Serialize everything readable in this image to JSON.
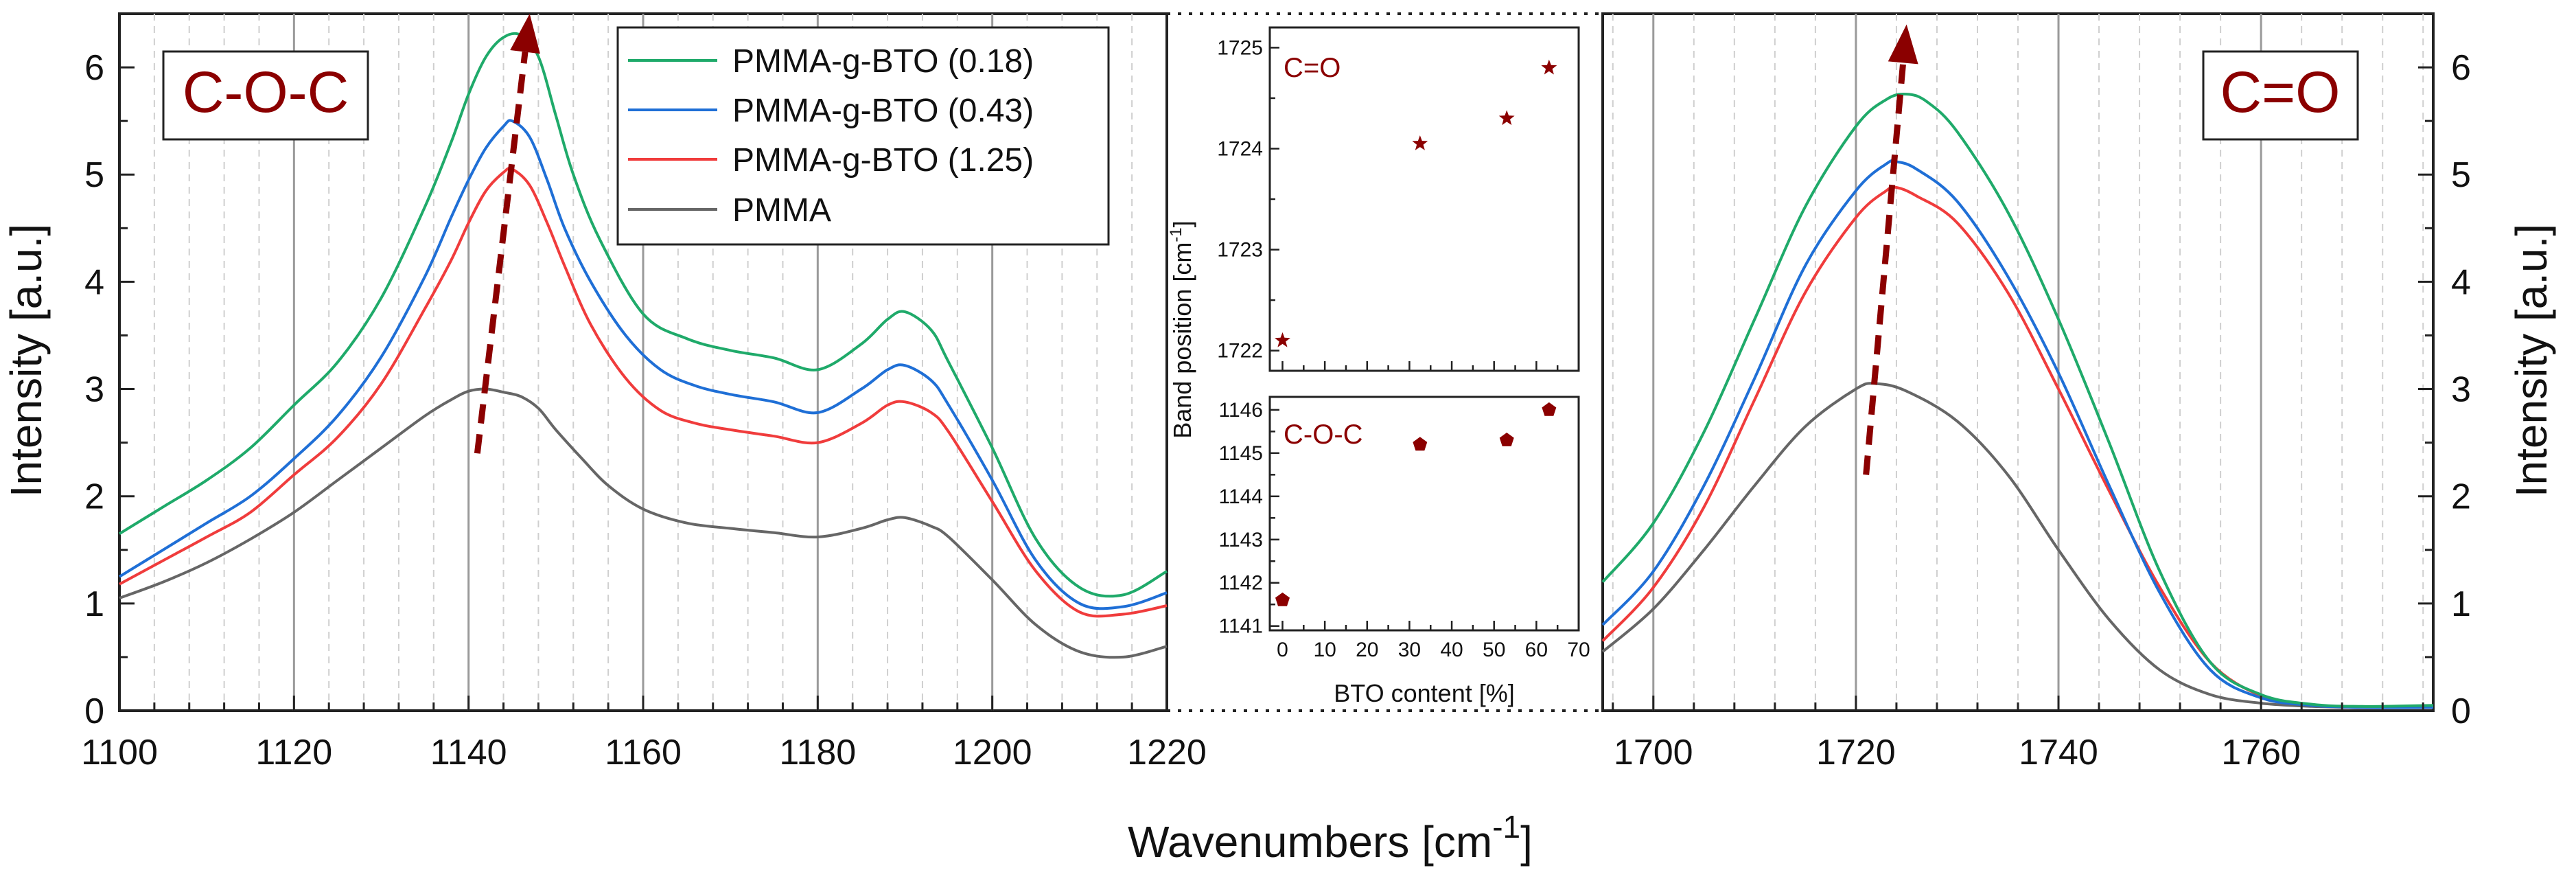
{
  "colors": {
    "pmma_g_bto_018": "#1faa6a",
    "pmma_g_bto_043": "#1f6fd6",
    "pmma_g_bto_125": "#f03c3c",
    "pmma": "#666666",
    "accent": "#8b0000"
  },
  "chart_data": [
    {
      "id": "left",
      "type": "line",
      "xlabel": "Wavenumbers [cm",
      "xlabel_sup": "-1",
      "xlabel_tail": "]",
      "ylabel": "Intensity [a.u.]",
      "xlim": [
        1100,
        1220
      ],
      "ylim": [
        0,
        6.5
      ],
      "xticks": [
        "1100",
        "1120",
        "1140",
        "1160",
        "1180",
        "1200",
        "1220"
      ],
      "yticks": [
        "0",
        "1",
        "2",
        "3",
        "4",
        "5",
        "6"
      ],
      "annotation": "C-O-C",
      "arrow": {
        "from": [
          1141,
          2.4
        ],
        "to": [
          1147,
          6.5
        ]
      },
      "legend": [
        "PMMA-g-BTO (0.18)",
        "PMMA-g-BTO (0.43)",
        "PMMA-g-BTO (1.25)",
        "PMMA"
      ],
      "series": [
        {
          "name": "PMMA-g-BTO (0.18)",
          "color": "#1faa6a",
          "x": [
            1100,
            1105,
            1110,
            1115,
            1120,
            1125,
            1130,
            1135,
            1138,
            1140,
            1142,
            1144,
            1146,
            1148,
            1150,
            1152,
            1155,
            1160,
            1165,
            1170,
            1175,
            1180,
            1185,
            1188,
            1190,
            1193,
            1195,
            1200,
            1205,
            1210,
            1215,
            1220
          ],
          "y": [
            1.65,
            1.9,
            2.15,
            2.45,
            2.85,
            3.25,
            3.85,
            4.7,
            5.3,
            5.75,
            6.1,
            6.28,
            6.3,
            6.1,
            5.55,
            5.0,
            4.4,
            3.7,
            3.47,
            3.36,
            3.29,
            3.18,
            3.42,
            3.65,
            3.72,
            3.55,
            3.25,
            2.45,
            1.6,
            1.15,
            1.08,
            1.3
          ]
        },
        {
          "name": "PMMA-g-BTO (0.43)",
          "color": "#1f6fd6",
          "x": [
            1100,
            1105,
            1110,
            1115,
            1120,
            1125,
            1130,
            1135,
            1138,
            1140,
            1142,
            1144,
            1145,
            1147,
            1149,
            1151,
            1154,
            1158,
            1162,
            1166,
            1170,
            1175,
            1180,
            1185,
            1188,
            1190,
            1193,
            1195,
            1200,
            1205,
            1210,
            1215,
            1220
          ],
          "y": [
            1.25,
            1.5,
            1.75,
            2.0,
            2.35,
            2.75,
            3.3,
            4.05,
            4.6,
            4.95,
            5.25,
            5.45,
            5.5,
            5.35,
            4.95,
            4.5,
            4.0,
            3.5,
            3.18,
            3.03,
            2.95,
            2.88,
            2.78,
            3.0,
            3.18,
            3.22,
            3.08,
            2.85,
            2.15,
            1.4,
            1.0,
            0.97,
            1.1
          ]
        },
        {
          "name": "PMMA-g-BTO (1.25)",
          "color": "#f03c3c",
          "x": [
            1100,
            1105,
            1110,
            1115,
            1120,
            1125,
            1130,
            1135,
            1138,
            1140,
            1142,
            1144,
            1145,
            1147,
            1149,
            1151,
            1154,
            1158,
            1162,
            1166,
            1170,
            1175,
            1180,
            1185,
            1188,
            1190,
            1193,
            1195,
            1200,
            1205,
            1210,
            1215,
            1220
          ],
          "y": [
            1.18,
            1.4,
            1.62,
            1.85,
            2.2,
            2.55,
            3.05,
            3.75,
            4.2,
            4.55,
            4.85,
            5.02,
            5.05,
            4.9,
            4.55,
            4.15,
            3.6,
            3.1,
            2.8,
            2.68,
            2.62,
            2.56,
            2.5,
            2.68,
            2.85,
            2.88,
            2.78,
            2.6,
            1.95,
            1.3,
            0.92,
            0.9,
            0.98
          ]
        },
        {
          "name": "PMMA",
          "color": "#666666",
          "x": [
            1100,
            1105,
            1110,
            1115,
            1120,
            1125,
            1130,
            1135,
            1138,
            1140,
            1142,
            1144,
            1146,
            1148,
            1150,
            1153,
            1156,
            1160,
            1165,
            1170,
            1175,
            1180,
            1185,
            1188,
            1190,
            1193,
            1195,
            1200,
            1205,
            1210,
            1215,
            1220
          ],
          "y": [
            1.05,
            1.2,
            1.38,
            1.6,
            1.85,
            2.15,
            2.45,
            2.75,
            2.9,
            2.98,
            3.0,
            2.97,
            2.93,
            2.82,
            2.62,
            2.35,
            2.1,
            1.88,
            1.75,
            1.7,
            1.66,
            1.62,
            1.7,
            1.78,
            1.8,
            1.72,
            1.62,
            1.22,
            0.8,
            0.55,
            0.5,
            0.6
          ]
        }
      ]
    },
    {
      "id": "right",
      "type": "line",
      "ylabel": "Intensity [a.u.]",
      "xlim": [
        1695,
        1777
      ],
      "ylim": [
        0,
        6.5
      ],
      "xticks": [
        "1700",
        "1720",
        "1740",
        "1760"
      ],
      "yticks": [
        "0",
        "1",
        "2",
        "3",
        "4",
        "5",
        "6"
      ],
      "annotation": "C=O",
      "arrow": {
        "from": [
          1721,
          2.2
        ],
        "to": [
          1725,
          6.4
        ]
      },
      "series": [
        {
          "name": "PMMA-g-BTO (0.18)",
          "color": "#1faa6a",
          "x": [
            1695,
            1700,
            1705,
            1710,
            1715,
            1720,
            1723,
            1725,
            1727,
            1730,
            1735,
            1740,
            1745,
            1750,
            1755,
            1760,
            1765,
            1770,
            1777
          ],
          "y": [
            1.2,
            1.75,
            2.6,
            3.65,
            4.7,
            5.45,
            5.7,
            5.75,
            5.68,
            5.4,
            4.65,
            3.65,
            2.5,
            1.3,
            0.45,
            0.15,
            0.06,
            0.04,
            0.05
          ]
        },
        {
          "name": "PMMA-g-BTO (0.43)",
          "color": "#1f6fd6",
          "x": [
            1695,
            1700,
            1705,
            1710,
            1715,
            1720,
            1723,
            1724,
            1726,
            1730,
            1735,
            1740,
            1745,
            1750,
            1755,
            1760,
            1765,
            1770,
            1777
          ],
          "y": [
            0.8,
            1.3,
            2.1,
            3.1,
            4.15,
            4.85,
            5.1,
            5.12,
            5.05,
            4.75,
            4.05,
            3.15,
            2.1,
            1.1,
            0.38,
            0.12,
            0.05,
            0.03,
            0.03
          ]
        },
        {
          "name": "PMMA-g-BTO (1.25)",
          "color": "#f03c3c",
          "x": [
            1695,
            1700,
            1705,
            1710,
            1715,
            1720,
            1723,
            1724,
            1726,
            1730,
            1735,
            1740,
            1745,
            1750,
            1755,
            1760,
            1765,
            1770,
            1777
          ],
          "y": [
            0.65,
            1.15,
            1.9,
            2.9,
            3.9,
            4.6,
            4.85,
            4.88,
            4.8,
            4.55,
            3.9,
            3.0,
            2.05,
            1.15,
            0.45,
            0.14,
            0.05,
            0.03,
            0.03
          ]
        },
        {
          "name": "PMMA",
          "color": "#666666",
          "x": [
            1695,
            1700,
            1705,
            1710,
            1715,
            1720,
            1722,
            1725,
            1730,
            1735,
            1740,
            1745,
            1750,
            1755,
            1760,
            1765,
            1770,
            1777
          ],
          "y": [
            0.55,
            0.95,
            1.5,
            2.1,
            2.65,
            3.0,
            3.05,
            2.98,
            2.7,
            2.2,
            1.5,
            0.85,
            0.38,
            0.15,
            0.07,
            0.04,
            0.03,
            0.03
          ]
        }
      ]
    },
    {
      "id": "inset_top",
      "type": "scatter",
      "ylabel": "Band position [cm",
      "ylabel_sup": "-1",
      "ylabel_tail": "]",
      "annotation": "C=O",
      "xlim": [
        -3,
        70
      ],
      "ylim": [
        1721.8,
        1725.2
      ],
      "yticks": [
        "1722",
        "1723",
        "1724",
        "1725"
      ],
      "x": [
        0,
        32.5,
        53,
        63
      ],
      "y": [
        1722.1,
        1724.05,
        1724.3,
        1724.8
      ],
      "color": "#8b0000"
    },
    {
      "id": "inset_bottom",
      "type": "scatter",
      "xlabel": "BTO content [%]",
      "annotation": "C-O-C",
      "xlim": [
        -3,
        70
      ],
      "ylim": [
        1140.9,
        1146.3
      ],
      "xticks": [
        "0",
        "10",
        "20",
        "30",
        "40",
        "50",
        "60",
        "70"
      ],
      "yticks": [
        "1141",
        "1142",
        "1143",
        "1144",
        "1145",
        "1146"
      ],
      "x": [
        0,
        32.5,
        53,
        63
      ],
      "y": [
        1141.6,
        1145.2,
        1145.3,
        1146.0
      ],
      "color": "#8b0000"
    }
  ]
}
